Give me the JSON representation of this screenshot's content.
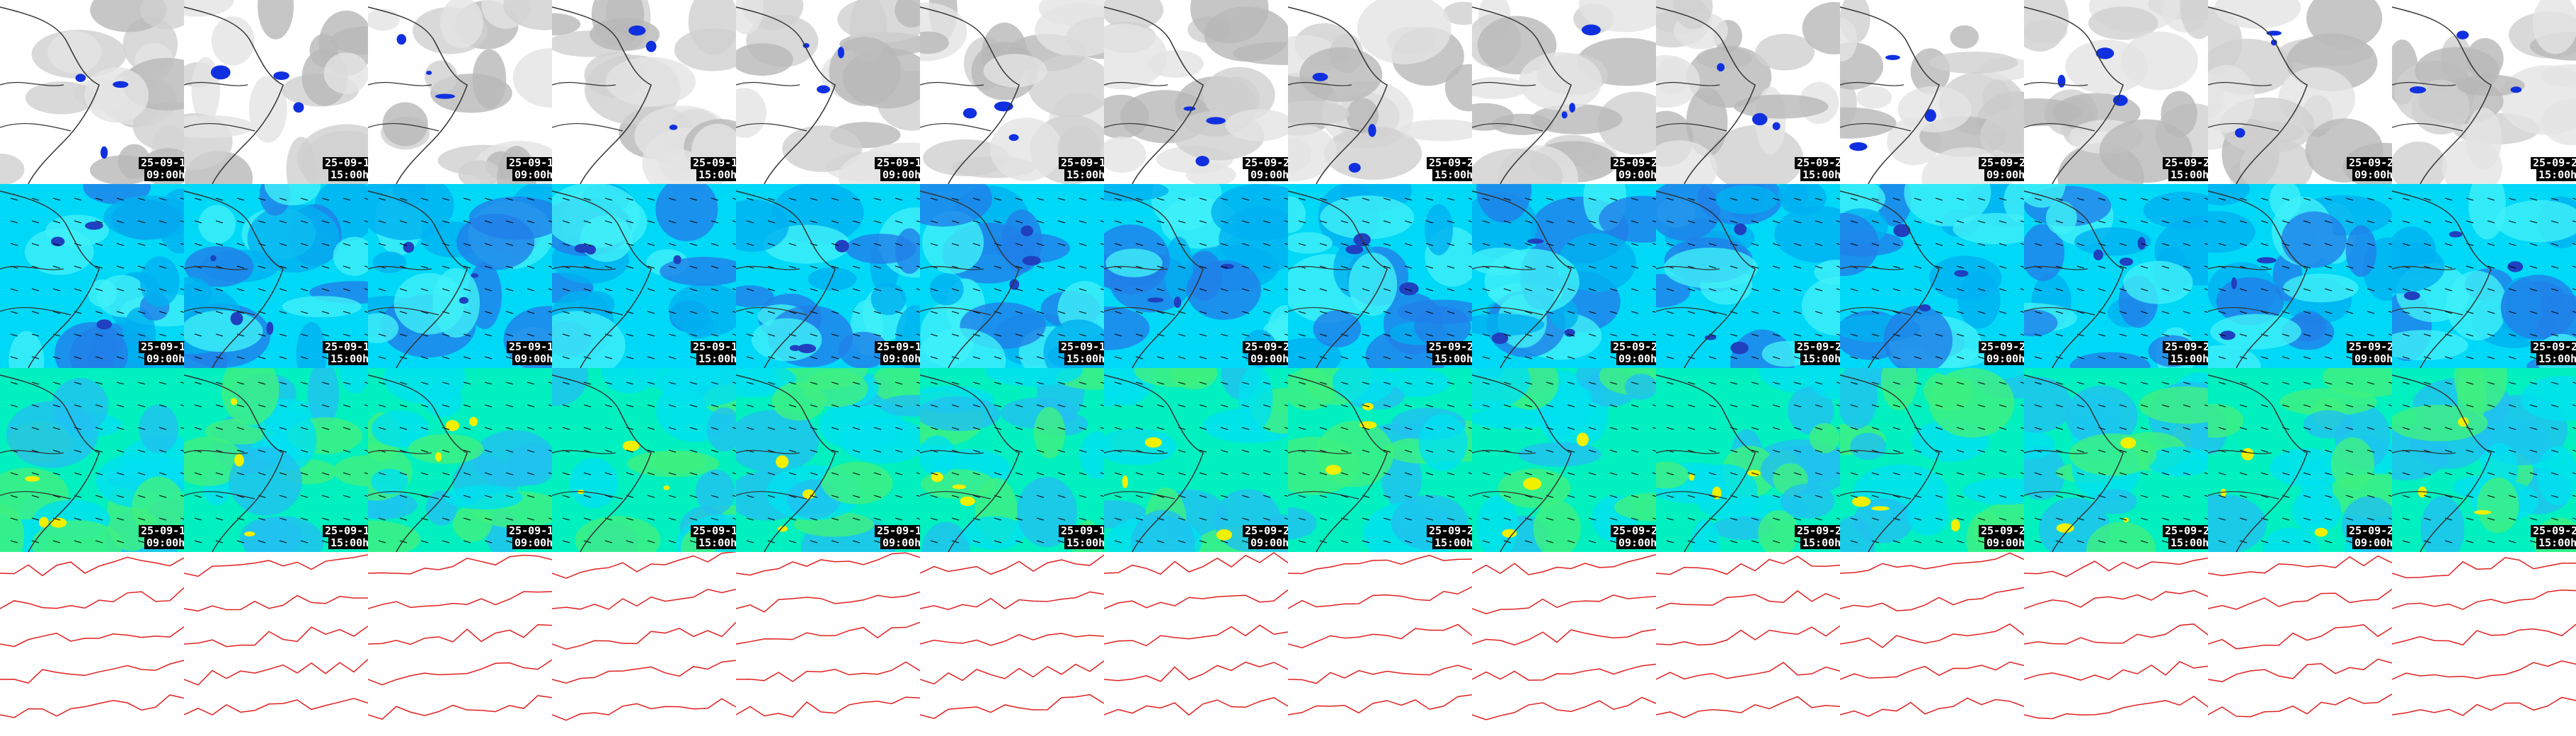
{
  "labels": [
    {
      "date": "25-09-1",
      "time": "09:00h"
    },
    {
      "date": "25-09-1",
      "time": "15:00h"
    },
    {
      "date": "25-09-1",
      "time": "09:00h"
    },
    {
      "date": "25-09-1",
      "time": "15:00h"
    },
    {
      "date": "25-09-1",
      "time": "09:00h"
    },
    {
      "date": "25-09-1",
      "time": "15:00h"
    },
    {
      "date": "25-09-2",
      "time": "09:00h"
    },
    {
      "date": "25-09-2",
      "time": "15:00h"
    },
    {
      "date": "25-09-2",
      "time": "09:00h"
    },
    {
      "date": "25-09-2",
      "time": "15:00h"
    },
    {
      "date": "25-09-2",
      "time": "09:00h"
    },
    {
      "date": "25-09-2",
      "time": "15:00h"
    },
    {
      "date": "25-09-2",
      "time": "09:00h"
    },
    {
      "date": "25-09-2",
      "time": "15:00h"
    }
  ]
}
